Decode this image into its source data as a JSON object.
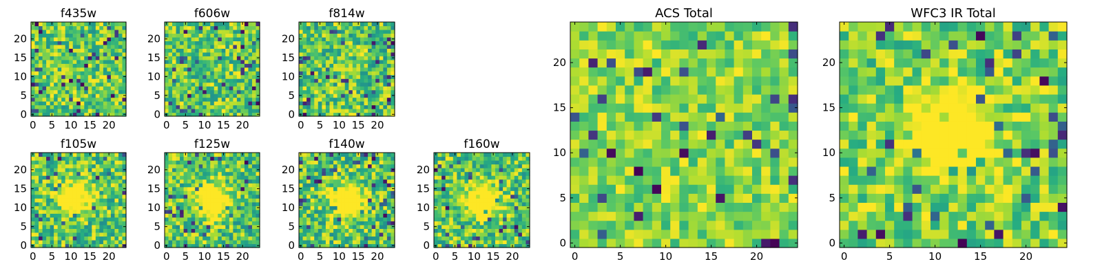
{
  "colormap": "viridis",
  "colors": {
    "background": "#ffffff",
    "axes_frame": "#000000"
  },
  "chart_data": [
    {
      "type": "heatmap",
      "title": "f435w",
      "xlim": [
        0,
        24
      ],
      "ylim": [
        0,
        24
      ],
      "xticks": [
        "0",
        "5",
        "10",
        "15",
        "20"
      ],
      "yticks": [
        "0",
        "5",
        "10",
        "15",
        "20"
      ],
      "grid_size": [
        25,
        25
      ],
      "colormap": "viridis",
      "feature": "noise",
      "value_range": [
        0.25,
        1.0
      ],
      "seed": 11
    },
    {
      "type": "heatmap",
      "title": "f606w",
      "xlim": [
        0,
        24
      ],
      "ylim": [
        0,
        24
      ],
      "xticks": [
        "0",
        "5",
        "10",
        "15",
        "20"
      ],
      "yticks": [
        "0",
        "5",
        "10",
        "15",
        "20"
      ],
      "grid_size": [
        25,
        25
      ],
      "colormap": "viridis",
      "feature": "noise",
      "value_range": [
        0.25,
        1.0
      ],
      "seed": 23
    },
    {
      "type": "heatmap",
      "title": "f814w",
      "xlim": [
        0,
        24
      ],
      "ylim": [
        0,
        24
      ],
      "xticks": [
        "0",
        "5",
        "10",
        "15",
        "20"
      ],
      "yticks": [
        "0",
        "5",
        "10",
        "15",
        "20"
      ],
      "grid_size": [
        25,
        25
      ],
      "colormap": "viridis",
      "feature": "noise with faint central source",
      "value_range": [
        0.2,
        1.0
      ],
      "seed": 37
    },
    {
      "type": "heatmap",
      "title": "f105w",
      "xlim": [
        0,
        24
      ],
      "ylim": [
        0,
        24
      ],
      "xticks": [
        "0",
        "5",
        "10",
        "15",
        "20"
      ],
      "yticks": [
        "0",
        "5",
        "10",
        "15",
        "20"
      ],
      "grid_size": [
        25,
        25
      ],
      "colormap": "viridis",
      "feature": "central source",
      "source_center": [
        11,
        13
      ],
      "value_range": [
        0.2,
        1.0
      ],
      "seed": 41
    },
    {
      "type": "heatmap",
      "title": "f125w",
      "xlim": [
        0,
        24
      ],
      "ylim": [
        0,
        24
      ],
      "xticks": [
        "0",
        "5",
        "10",
        "15",
        "20"
      ],
      "yticks": [
        "0",
        "5",
        "10",
        "15",
        "20"
      ],
      "grid_size": [
        25,
        25
      ],
      "colormap": "viridis",
      "feature": "central source",
      "source_center": [
        12,
        12
      ],
      "value_range": [
        0.2,
        1.0
      ],
      "seed": 53
    },
    {
      "type": "heatmap",
      "title": "f140w",
      "xlim": [
        0,
        24
      ],
      "ylim": [
        0,
        24
      ],
      "xticks": [
        "0",
        "5",
        "10",
        "15",
        "20"
      ],
      "yticks": [
        "0",
        "5",
        "10",
        "15",
        "20"
      ],
      "grid_size": [
        25,
        25
      ],
      "colormap": "viridis",
      "feature": "central source",
      "source_center": [
        12,
        12
      ],
      "value_range": [
        0.2,
        1.0
      ],
      "seed": 67
    },
    {
      "type": "heatmap",
      "title": "f160w",
      "xlim": [
        0,
        24
      ],
      "ylim": [
        0,
        24
      ],
      "xticks": [
        "0",
        "5",
        "10",
        "15",
        "20"
      ],
      "yticks": [
        "0",
        "5",
        "10",
        "15",
        "20"
      ],
      "grid_size": [
        25,
        25
      ],
      "colormap": "viridis",
      "feature": "central source",
      "source_center": [
        12,
        12
      ],
      "value_range": [
        0.2,
        1.0
      ],
      "seed": 79
    },
    {
      "type": "heatmap",
      "title": "ACS Total",
      "xlim": [
        0,
        24
      ],
      "ylim": [
        0,
        24
      ],
      "xticks": [
        "0",
        "5",
        "10",
        "15",
        "20"
      ],
      "yticks": [
        "0",
        "5",
        "10",
        "15",
        "20"
      ],
      "grid_size": [
        25,
        25
      ],
      "colormap": "viridis",
      "feature": "noise",
      "value_range": [
        0.45,
        1.0
      ],
      "seed": 83
    },
    {
      "type": "heatmap",
      "title": "WFC3 IR Total",
      "xlim": [
        0,
        24
      ],
      "ylim": [
        0,
        24
      ],
      "xticks": [
        "0",
        "5",
        "10",
        "15",
        "20"
      ],
      "yticks": [
        "0",
        "5",
        "10",
        "15",
        "20"
      ],
      "grid_size": [
        25,
        25
      ],
      "colormap": "viridis",
      "feature": "central source",
      "source_center": [
        12,
        12
      ],
      "value_range": [
        0.35,
        1.0
      ],
      "seed": 97
    }
  ]
}
